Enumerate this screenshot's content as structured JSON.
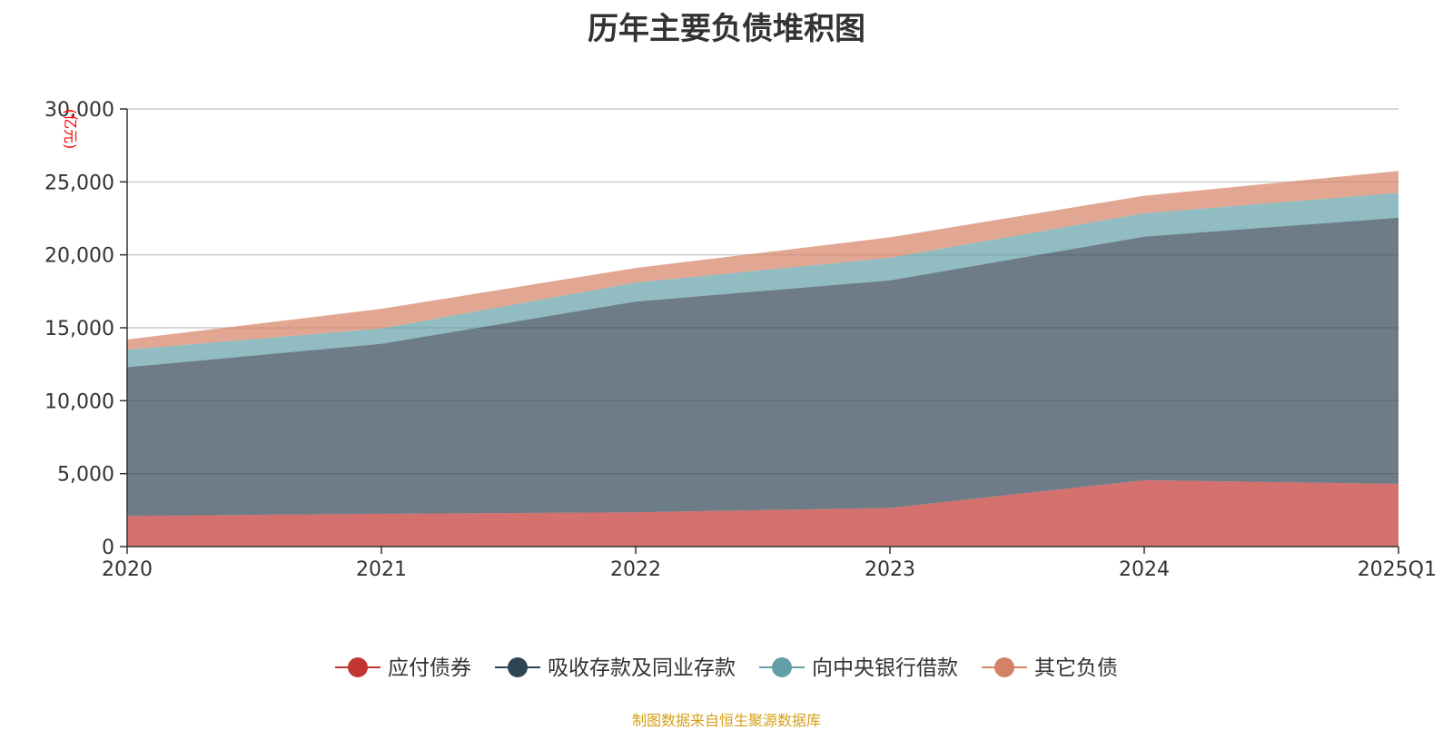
{
  "chart_data": {
    "type": "area",
    "stacked": true,
    "title": "历年主要负债堆积图",
    "y_unit": "(亿元)",
    "categories": [
      "2020",
      "2021",
      "2022",
      "2023",
      "2024",
      "2025Q1"
    ],
    "ylim": [
      0,
      30000
    ],
    "yticks": [
      0,
      5000,
      10000,
      15000,
      20000,
      25000,
      30000
    ],
    "ytick_labels": [
      "0",
      "5,000",
      "10,000",
      "15,000",
      "20,000",
      "25,000",
      "30,000"
    ],
    "grid": true,
    "legend_position": "bottom",
    "series": [
      {
        "name": "应付债券",
        "color": "#c23531",
        "values": [
          2100,
          2250,
          2350,
          2650,
          4550,
          4300
        ]
      },
      {
        "name": "吸收存款及同业存款",
        "color": "#2f4554",
        "values": [
          10200,
          11650,
          14450,
          15600,
          16700,
          18250
        ]
      },
      {
        "name": "向中央银行借款",
        "color": "#61a0a8",
        "values": [
          1200,
          1050,
          1300,
          1550,
          1600,
          1700
        ]
      },
      {
        "name": "其它负债",
        "color": "#d48265",
        "values": [
          700,
          1350,
          1000,
          1400,
          1200,
          1500
        ]
      }
    ]
  },
  "source": "制图数据来自恒生聚源数据库"
}
